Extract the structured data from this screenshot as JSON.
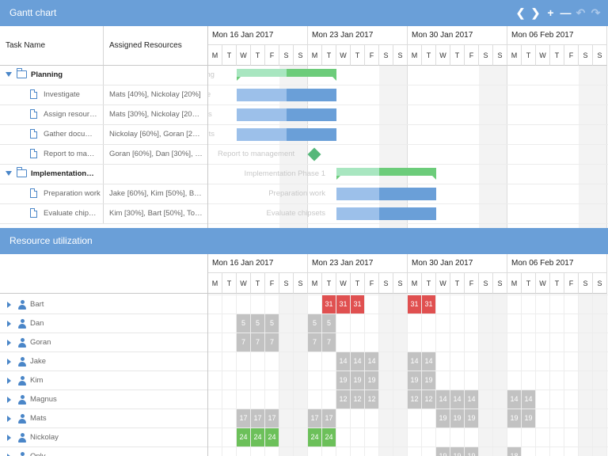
{
  "top_panel": {
    "title": "Gantt chart"
  },
  "toolbar": {
    "icons": [
      "chevron-left-icon",
      "chevron-right-icon",
      "zoom-in-icon",
      "zoom-out-icon",
      "undo-icon",
      "redo-icon"
    ],
    "glyphs": [
      "❮",
      "❯",
      "+",
      "—",
      "↶",
      "↷"
    ]
  },
  "columns": {
    "task_name": "Task Name",
    "assigned_resources": "Assigned Resources"
  },
  "weeks": [
    "Mon 16 Jan 2017",
    "Mon 23 Jan 2017",
    "Mon 30 Jan 2017",
    "Mon 06 Feb 2017"
  ],
  "day_letters": [
    "M",
    "T",
    "W",
    "T",
    "F",
    "S",
    "S"
  ],
  "tasks": [
    {
      "name": "Planning",
      "resources": "",
      "type": "summary",
      "level": 0
    },
    {
      "name": "Investigate",
      "resources": "Mats [40%], Nickolay [20%]",
      "type": "task",
      "level": 1
    },
    {
      "name": "Assign resour…",
      "resources": "Mats [30%], Nickolay [20…",
      "type": "task",
      "level": 1
    },
    {
      "name": "Gather docu…",
      "resources": "Nickolay [60%], Goran [2…",
      "type": "task",
      "level": 1
    },
    {
      "name": "Report to ma…",
      "resources": "Goran [60%], Dan [30%], …",
      "type": "task",
      "level": 1
    },
    {
      "name": "Implementation…",
      "resources": "",
      "type": "summary",
      "level": 0
    },
    {
      "name": "Preparation work",
      "resources": "Jake [60%], Kim [50%], B…",
      "type": "task",
      "level": 1
    },
    {
      "name": "Evaluate chip…",
      "resources": "Kim [30%], Bart [50%], To…",
      "type": "task",
      "level": 1
    }
  ],
  "gantt_labels": {
    "row0": "ning",
    "row1": "ate",
    "row2": "ces",
    "row3": "ents",
    "milestone": "Report to management",
    "impl": "Implementation Phase 1",
    "prep": "Preparation work",
    "eval": "Evaluate chipsets"
  },
  "bottom_panel": {
    "title": "Resource utilization"
  },
  "resources": [
    {
      "name": "Bart",
      "cells": [
        [
          8,
          "31"
        ],
        [
          9,
          "31"
        ],
        [
          10,
          "31"
        ],
        [
          14,
          "31"
        ],
        [
          15,
          "31"
        ]
      ],
      "color": "red"
    },
    {
      "name": "Dan",
      "cells": [
        [
          2,
          "5"
        ],
        [
          3,
          "5"
        ],
        [
          4,
          "5"
        ],
        [
          7,
          "5"
        ],
        [
          8,
          "5"
        ]
      ],
      "color": "grey"
    },
    {
      "name": "Goran",
      "cells": [
        [
          2,
          "7"
        ],
        [
          3,
          "7"
        ],
        [
          4,
          "7"
        ],
        [
          7,
          "7"
        ],
        [
          8,
          "7"
        ]
      ],
      "color": "grey"
    },
    {
      "name": "Jake",
      "cells": [
        [
          9,
          "14"
        ],
        [
          10,
          "14"
        ],
        [
          11,
          "14"
        ],
        [
          14,
          "14"
        ],
        [
          15,
          "14"
        ]
      ],
      "color": "grey"
    },
    {
      "name": "Kim",
      "cells": [
        [
          9,
          "19"
        ],
        [
          10,
          "19"
        ],
        [
          11,
          "19"
        ],
        [
          14,
          "19"
        ],
        [
          15,
          "19"
        ]
      ],
      "color": "grey"
    },
    {
      "name": "Magnus",
      "cells": [
        [
          9,
          "12"
        ],
        [
          10,
          "12"
        ],
        [
          11,
          "12"
        ],
        [
          14,
          "12"
        ],
        [
          15,
          "12"
        ],
        [
          16,
          "14"
        ],
        [
          17,
          "14"
        ],
        [
          18,
          "14"
        ],
        [
          21,
          "14"
        ],
        [
          22,
          "14"
        ]
      ],
      "color": "grey"
    },
    {
      "name": "Mats",
      "cells": [
        [
          2,
          "17"
        ],
        [
          3,
          "17"
        ],
        [
          4,
          "17"
        ],
        [
          7,
          "17"
        ],
        [
          8,
          "17"
        ],
        [
          16,
          "19"
        ],
        [
          17,
          "19"
        ],
        [
          18,
          "19"
        ],
        [
          21,
          "19"
        ],
        [
          22,
          "19"
        ]
      ],
      "color": "grey"
    },
    {
      "name": "Nickolay",
      "cells": [
        [
          2,
          "24"
        ],
        [
          3,
          "24"
        ],
        [
          4,
          "24"
        ],
        [
          7,
          "24"
        ],
        [
          8,
          "24"
        ]
      ],
      "color": "green"
    },
    {
      "name": "Only",
      "cells": [
        [
          16,
          "19"
        ],
        [
          17,
          "19"
        ],
        [
          18,
          "19"
        ],
        [
          21,
          "18"
        ]
      ],
      "color": "grey"
    }
  ],
  "colors": {
    "header": "#6a9fd8",
    "summary_done": "#a8e6c0",
    "summary_rest": "#6ccc7a",
    "task_done": "#9cc0ea",
    "task_rest": "#6a9fd8",
    "milestone": "#56b87a"
  }
}
